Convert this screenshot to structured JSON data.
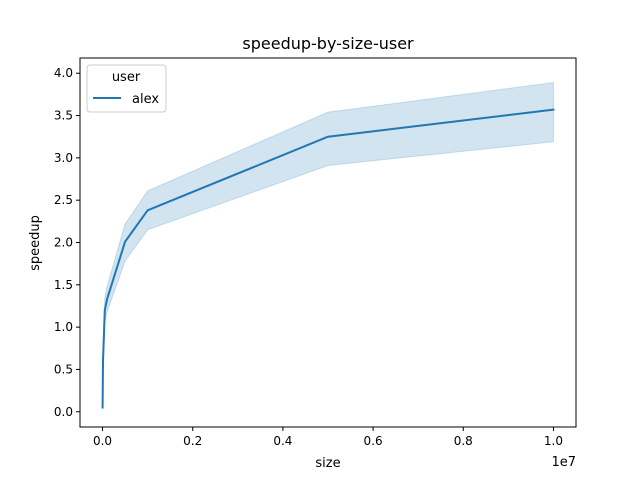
{
  "chart_data": {
    "type": "line",
    "title": "speedup-by-size-user",
    "xlabel": "size",
    "ylabel": "speedup",
    "x_offset_label": "1e7",
    "xlim": [
      -500000,
      10500000
    ],
    "ylim": [
      -0.18,
      4.18
    ],
    "x_ticks": [
      0,
      2000000,
      4000000,
      6000000,
      8000000,
      10000000
    ],
    "x_tick_labels": [
      "0.0",
      "0.2",
      "0.4",
      "0.6",
      "0.8",
      "1.0"
    ],
    "y_ticks": [
      0.0,
      0.5,
      1.0,
      1.5,
      2.0,
      2.5,
      3.0,
      3.5,
      4.0
    ],
    "y_tick_labels": [
      "0.0",
      "0.5",
      "1.0",
      "1.5",
      "2.0",
      "2.5",
      "3.0",
      "3.5",
      "4.0"
    ],
    "grid": false,
    "legend": {
      "title": "user",
      "position": "top-left"
    },
    "series": [
      {
        "name": "alex",
        "color": "#1f77b4",
        "x": [
          1000,
          10000,
          50000,
          100000,
          500000,
          1000000,
          5000000,
          10000000
        ],
        "y": [
          0.05,
          0.6,
          1.2,
          1.33,
          2.01,
          2.38,
          3.25,
          3.57
        ],
        "ci_low": [
          0.03,
          0.45,
          1.05,
          1.18,
          1.78,
          2.15,
          2.91,
          3.19
        ],
        "ci_high": [
          0.07,
          0.75,
          1.35,
          1.48,
          2.22,
          2.61,
          3.54,
          3.89
        ]
      }
    ]
  }
}
